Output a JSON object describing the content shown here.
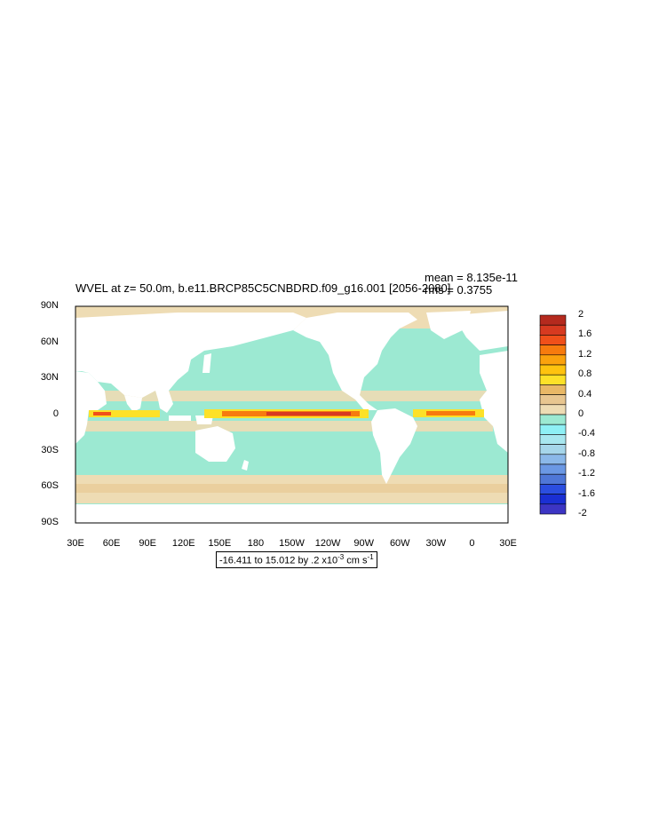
{
  "title": "WVEL at z=  50.0m, b.e11.BRCP85C5CNBDRD.f09_g16.001 [2056-2080]",
  "stats": {
    "mean": "mean = 8.135e-11",
    "rms": "rms = 0.3755"
  },
  "lat_ticks": [
    "90N",
    "60N",
    "30N",
    "0",
    "30S",
    "60S",
    "90S"
  ],
  "lon_ticks": [
    "30E",
    "60E",
    "90E",
    "120E",
    "150E",
    "180",
    "150W",
    "120W",
    "90W",
    "60W",
    "30W",
    "0",
    "30E"
  ],
  "colorbar": {
    "levels": [
      "2",
      "1.6",
      "1.2",
      "0.8",
      "0.4",
      "0",
      "-0.4",
      "-0.8",
      "-1.2",
      "-1.6",
      "-2"
    ],
    "colors": [
      "#b52a1e",
      "#d73a20",
      "#f0501a",
      "#f77b0e",
      "#fba20d",
      "#fec30f",
      "#fde128",
      "#e9b866",
      "#e8c690",
      "#eedcb4",
      "#9ce9d2",
      "#8ef0f5",
      "#a8e7ef",
      "#a6d6ea",
      "#8bb8e9",
      "#6b98e4",
      "#4f77d7",
      "#2b4ee0",
      "#1a2fd3",
      "#3c35c4"
    ]
  },
  "range_label": {
    "prefix": "-16.411 to 15.012 by .2 x10",
    "exp": "-3",
    "mid": " cm s",
    "exp2": "-1"
  },
  "colors": {
    "ocean": "#9ce9d2",
    "positive_light": "#eedcb4",
    "positive_mid": "#e8c690",
    "land": "#ffffff"
  }
}
